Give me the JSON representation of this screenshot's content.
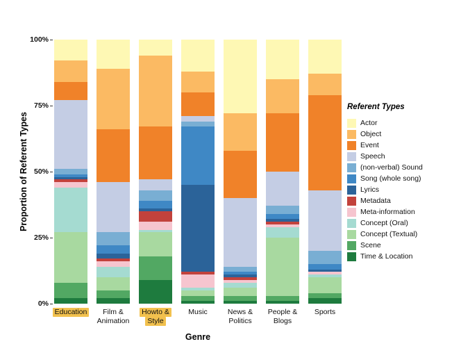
{
  "chart": {
    "y_title": "Proportion of Referent Types",
    "x_title": "Genre",
    "legend_title": "Referent Types"
  },
  "chart_data": {
    "type": "bar",
    "stacked": true,
    "percent": true,
    "title": "",
    "xlabel": "Genre",
    "ylabel": "Proportion of Referent Types",
    "ylim": [
      0,
      100
    ],
    "grid": false,
    "legend_position": "right",
    "legend_title": "Referent Types",
    "y_ticks": [
      {
        "value": 0,
        "label": "0%"
      },
      {
        "value": 25,
        "label": "25%"
      },
      {
        "value": 50,
        "label": "50%"
      },
      {
        "value": 75,
        "label": "75%"
      },
      {
        "value": 100,
        "label": "100%"
      }
    ],
    "categories": [
      "Education",
      "Film & Animation",
      "Howto & Style",
      "Music",
      "News & Politics",
      "People & Blogs",
      "Sports"
    ],
    "category_label_lines": [
      [
        "Education"
      ],
      [
        "Film &",
        "Animation"
      ],
      [
        "Howto &",
        "Style"
      ],
      [
        "Music"
      ],
      [
        "News &",
        "Politics"
      ],
      [
        "People &",
        "Blogs"
      ],
      [
        "Sports"
      ]
    ],
    "highlighted_categories": [
      "Education",
      "Howto & Style"
    ],
    "highlight_color": "#F2C14E",
    "series_note": "series listed top-to-bottom as in legend; bars stack in same order (Actor on top, Time & Location at bottom); values are percent per genre",
    "series": [
      {
        "name": "Actor",
        "color": "#FEF8B4",
        "values": [
          8,
          11,
          6,
          12,
          28,
          15,
          13
        ]
      },
      {
        "name": "Object",
        "color": "#FBBA63",
        "values": [
          8,
          23,
          27,
          8,
          14,
          13,
          8
        ]
      },
      {
        "name": "Event",
        "color": "#F08229",
        "values": [
          7,
          20,
          20,
          9,
          18,
          22,
          36
        ]
      },
      {
        "name": "Speech",
        "color": "#C4CDE4",
        "values": [
          26,
          19,
          4,
          2,
          26,
          13,
          23
        ]
      },
      {
        "name": "(non-verbal) Sound",
        "color": "#79AED3",
        "values": [
          2,
          5,
          4,
          2,
          2,
          3,
          5
        ]
      },
      {
        "name": "Song (whole song)",
        "color": "#3F88C5",
        "values": [
          1,
          3,
          3,
          22,
          1,
          2,
          2
        ]
      },
      {
        "name": "Lyrics",
        "color": "#2B6399",
        "values": [
          1,
          2,
          1,
          33,
          1,
          1,
          1
        ]
      },
      {
        "name": "Metadata",
        "color": "#C2423C",
        "values": [
          1,
          1,
          4,
          1,
          1,
          1,
          0
        ]
      },
      {
        "name": "Meta-information",
        "color": "#F6C5CF",
        "values": [
          2,
          2,
          3,
          5,
          1,
          1,
          1
        ]
      },
      {
        "name": "Concept (Oral)",
        "color": "#A5DBD1",
        "values": [
          17,
          4,
          1,
          1,
          2,
          4,
          1
        ]
      },
      {
        "name": "Concept (Textual)",
        "color": "#A8D9A0",
        "values": [
          19,
          5,
          9,
          2,
          3,
          22,
          6
        ]
      },
      {
        "name": "Scene",
        "color": "#52A863",
        "values": [
          6,
          3,
          9,
          2,
          2,
          2,
          2
        ]
      },
      {
        "name": "Time & Location",
        "color": "#1E7B3E",
        "values": [
          2,
          2,
          9,
          1,
          1,
          1,
          2
        ]
      }
    ]
  }
}
